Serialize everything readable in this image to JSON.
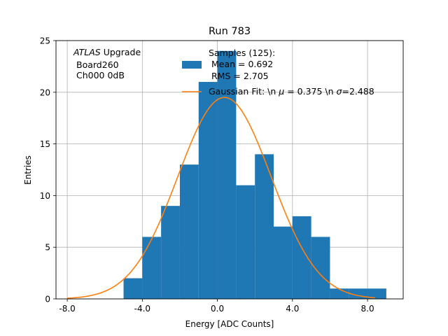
{
  "chart_data": {
    "type": "bar",
    "title": "Run 783",
    "xlabel": "Energy [ADC Counts]",
    "ylabel": "Entries",
    "xlim": [
      -8.6,
      9.9
    ],
    "ylim": [
      0,
      25
    ],
    "xticks": [
      -8.0,
      -4.0,
      0.0,
      4.0,
      8.0
    ],
    "xtick_labels": [
      "-8.0",
      "-4.0",
      "0.0",
      "4.0",
      "8.0"
    ],
    "yticks": [
      0,
      5,
      10,
      15,
      20,
      25
    ],
    "ytick_labels": [
      "0",
      "5",
      "10",
      "15",
      "20",
      "25"
    ],
    "grid": true,
    "legend_position": "top-right",
    "colors": {
      "histogram": "#1f77b4",
      "fit": "#ff7f0e",
      "grid": "#b0b0b0"
    },
    "annotation": {
      "italic": "ATLAS",
      "line1_rest": " Upgrade",
      "line2": "Board260",
      "line3": "Ch000 0dB"
    },
    "histogram": {
      "name": "Samples (125):",
      "bin_edges": [
        -5.0,
        -4.0,
        -3.0,
        -2.0,
        -1.0,
        0.0,
        1.0,
        2.0,
        3.0,
        4.0,
        5.0,
        6.0,
        7.0,
        8.0,
        9.0
      ],
      "counts": [
        2,
        6,
        9,
        13,
        21,
        24,
        11,
        14,
        7,
        8,
        6,
        1,
        1,
        1
      ]
    },
    "series": [
      {
        "name": "Gaussian Fit",
        "type": "line",
        "mu": 0.375,
        "sigma": 2.488,
        "amplitude": 19.5,
        "x_range": [
          -8.0,
          8.4
        ]
      }
    ],
    "legend": {
      "hist_title": "Samples (125):",
      "hist_mean": "Mean = 0.692",
      "hist_rms": "RMS = 2.705",
      "fit_prefix": "Gaussian Fit: \\n ",
      "fit_mu_sym": "μ",
      "fit_mid": " = 0.375 \\n ",
      "fit_sigma_sym": "σ",
      "fit_suffix": "=2.488"
    }
  }
}
